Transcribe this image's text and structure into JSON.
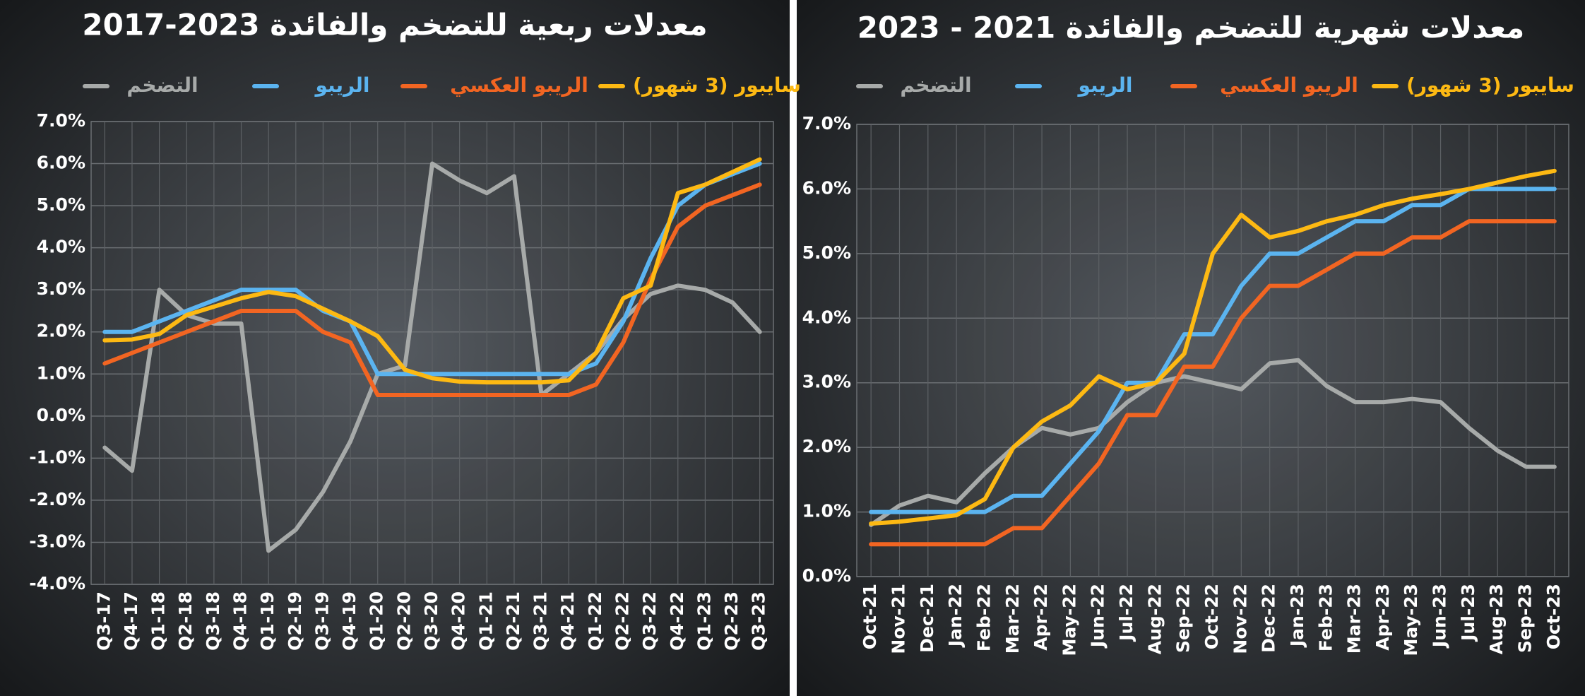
{
  "chart_data": [
    {
      "type": "line",
      "title": "معدلات ربعية للتضخم والفائدة 2023-2017",
      "categories": [
        "Q3-17",
        "Q4-17",
        "Q1-18",
        "Q2-18",
        "Q3-18",
        "Q4-18",
        "Q1-19",
        "Q2-19",
        "Q3-19",
        "Q4-19",
        "Q1-20",
        "Q2-20",
        "Q3-20",
        "Q4-20",
        "Q1-21",
        "Q2-21",
        "Q3-21",
        "Q4-21",
        "Q1-22",
        "Q2-22",
        "Q3-22",
        "Q4-22",
        "Q1-23",
        "Q2-23",
        "Q3-23"
      ],
      "series": [
        {
          "name": "التضخم",
          "color": "#a7aaa9",
          "values": [
            -0.75,
            -1.3,
            3.0,
            2.4,
            2.2,
            2.2,
            -3.2,
            -2.7,
            -1.8,
            -0.6,
            1.0,
            1.2,
            6.0,
            5.6,
            5.3,
            5.7,
            0.5,
            1.0,
            1.5,
            2.3,
            2.9,
            3.1,
            3.0,
            2.7,
            2.0
          ]
        },
        {
          "name": "الريبو",
          "color": "#5bb4f0",
          "values": [
            2.0,
            2.0,
            2.25,
            2.5,
            2.75,
            3.0,
            3.0,
            3.0,
            2.5,
            2.25,
            1.0,
            1.0,
            1.0,
            1.0,
            1.0,
            1.0,
            1.0,
            1.0,
            1.25,
            2.25,
            3.75,
            5.0,
            5.5,
            5.75,
            6.0
          ]
        },
        {
          "name": "الريبو العكسي",
          "color": "#f26522",
          "values": [
            1.25,
            1.5,
            1.75,
            2.0,
            2.25,
            2.5,
            2.5,
            2.5,
            2.0,
            1.75,
            0.5,
            0.5,
            0.5,
            0.5,
            0.5,
            0.5,
            0.5,
            0.5,
            0.75,
            1.75,
            3.25,
            4.5,
            5.0,
            5.25,
            5.5
          ]
        },
        {
          "name": "سايبور (3 شهور)",
          "color": "#fdb913",
          "values": [
            1.8,
            1.82,
            1.95,
            2.4,
            2.6,
            2.8,
            2.95,
            2.85,
            2.55,
            2.25,
            1.9,
            1.1,
            0.9,
            0.82,
            0.8,
            0.8,
            0.8,
            0.85,
            1.5,
            2.8,
            3.1,
            5.3,
            5.5,
            5.8,
            6.1
          ]
        }
      ],
      "ylim": [
        -4,
        7
      ],
      "yticks": [
        {
          "value": 7,
          "label": "7.0%"
        },
        {
          "value": 6,
          "label": "6.0%"
        },
        {
          "value": 5,
          "label": "5.0%"
        },
        {
          "value": 4,
          "label": "4.0%"
        },
        {
          "value": 3,
          "label": "3.0%"
        },
        {
          "value": 2,
          "label": "2.0%"
        },
        {
          "value": 1,
          "label": "1.0%"
        },
        {
          "value": 0,
          "label": "0.0%"
        },
        {
          "value": -1,
          "label": "-1.0%"
        },
        {
          "value": -2,
          "label": "-2.0%"
        },
        {
          "value": -3,
          "label": "-3.0%"
        },
        {
          "value": -4,
          "label": "-4.0%"
        }
      ],
      "grid": true
    },
    {
      "type": "line",
      "title": "معدلات شهرية للتضخم والفائدة 2021 - 2023",
      "categories": [
        "Oct-21",
        "Nov-21",
        "Dec-21",
        "Jan-22",
        "Feb-22",
        "Mar-22",
        "Apr-22",
        "May-22",
        "Jun-22",
        "Jul-22",
        "Aug-22",
        "Sep-22",
        "Oct-22",
        "Nov-22",
        "Dec-22",
        "Jan-23",
        "Feb-23",
        "Mar-23",
        "Apr-23",
        "May-23",
        "Jun-23",
        "Jul-23",
        "Aug-23",
        "Sep-23",
        "Oct-23"
      ],
      "series": [
        {
          "name": "التضخم",
          "color": "#a7aaa9",
          "values": [
            0.8,
            1.1,
            1.25,
            1.15,
            1.6,
            2.0,
            2.3,
            2.2,
            2.3,
            2.7,
            3.0,
            3.1,
            3.0,
            2.9,
            3.3,
            3.35,
            2.95,
            2.7,
            2.7,
            2.75,
            2.7,
            2.3,
            1.95,
            1.7,
            1.7
          ]
        },
        {
          "name": "الريبو",
          "color": "#5bb4f0",
          "values": [
            1.0,
            1.0,
            1.0,
            1.0,
            1.0,
            1.25,
            1.25,
            1.75,
            2.25,
            3.0,
            3.0,
            3.75,
            3.75,
            4.5,
            5.0,
            5.0,
            5.25,
            5.5,
            5.5,
            5.75,
            5.75,
            6.0,
            6.0,
            6.0,
            6.0
          ]
        },
        {
          "name": "الريبو العكسي",
          "color": "#f26522",
          "values": [
            0.5,
            0.5,
            0.5,
            0.5,
            0.5,
            0.75,
            0.75,
            1.25,
            1.75,
            2.5,
            2.5,
            3.25,
            3.25,
            4.0,
            4.5,
            4.5,
            4.75,
            5.0,
            5.0,
            5.25,
            5.25,
            5.5,
            5.5,
            5.5,
            5.5
          ]
        },
        {
          "name": "سايبور (3 شهور)",
          "color": "#fdb913",
          "values": [
            0.82,
            0.85,
            0.9,
            0.95,
            1.2,
            2.0,
            2.4,
            2.65,
            3.1,
            2.9,
            3.0,
            3.45,
            5.0,
            5.6,
            5.25,
            5.35,
            5.5,
            5.6,
            5.75,
            5.85,
            5.92,
            6.0,
            6.1,
            6.2,
            6.28
          ]
        }
      ],
      "ylim": [
        0,
        7
      ],
      "yticks": [
        {
          "value": 7,
          "label": "7.0%"
        },
        {
          "value": 6,
          "label": "6.0%"
        },
        {
          "value": 5,
          "label": "5.0%"
        },
        {
          "value": 4,
          "label": "4.0%"
        },
        {
          "value": 3,
          "label": "3.0%"
        },
        {
          "value": 2,
          "label": "2.0%"
        },
        {
          "value": 1,
          "label": "1.0%"
        },
        {
          "value": 0,
          "label": "0.0%"
        }
      ],
      "grid": true
    }
  ]
}
